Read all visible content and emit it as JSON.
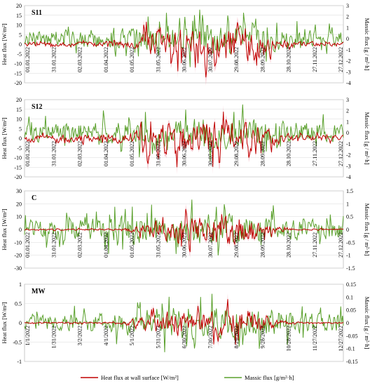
{
  "colors": {
    "heat": "#c00000",
    "massic": "#5aa02c",
    "heat_band": "#f4b6c2",
    "grid": "#d9d9d9",
    "frame": "#a6a6a6"
  },
  "chart_data": [
    {
      "type": "line",
      "title": "S11",
      "ylabel_left": "Heat flux [W/m²]",
      "ylabel_right": "Massic flux [g / m²·h]",
      "ylim_left": [
        -20,
        20
      ],
      "yticks_left": [
        "20",
        "15",
        "10",
        "5",
        "0",
        "-5",
        "-10",
        "-15",
        "-20"
      ],
      "ylim_right": [
        -4,
        3
      ],
      "yticks_right": [
        "3",
        "2",
        "1",
        "0",
        "-1",
        "-2",
        "-3",
        "-4"
      ],
      "x_tick_labels": [
        "01.01.2022",
        "31.01.2022",
        "02.03.2022",
        "01.04.2022",
        "01.05.2022",
        "31.05.2022",
        "30.06.2022",
        "30.07.2022",
        "29.08.2022",
        "28.09.2022",
        "28.10.2022",
        "27.11.2022",
        "27.12.2022"
      ],
      "series": [
        {
          "name": "Heat flux at wall surface [W/m²]",
          "axis": "left",
          "envelope": [
            [
              0,
              1.5
            ],
            [
              0.2,
              1.5
            ],
            [
              0.33,
              2
            ],
            [
              0.38,
              9
            ],
            [
              0.45,
              11
            ],
            [
              0.55,
              11
            ],
            [
              0.66,
              12
            ],
            [
              0.72,
              10
            ],
            [
              0.78,
              4
            ],
            [
              0.85,
              1.5
            ],
            [
              1,
              1.5
            ]
          ]
        },
        {
          "name": "Massic flux [g/m²·h]",
          "axis": "right",
          "envelope": [
            [
              0,
              0.9
            ],
            [
              0.15,
              0.9
            ],
            [
              0.3,
              1.2
            ],
            [
              0.45,
              1.4
            ],
            [
              0.6,
              1.5
            ],
            [
              0.75,
              1.4
            ],
            [
              0.9,
              0.9
            ],
            [
              1,
              0.8
            ]
          ]
        }
      ]
    },
    {
      "type": "line",
      "title": "S12",
      "ylabel_left": "Heat flux [W/m²]",
      "ylabel_right": "Massic flux [g / m²·h]",
      "ylim_left": [
        -20,
        20
      ],
      "yticks_left": [
        "20",
        "15",
        "10",
        "5",
        "0",
        "-5",
        "-10",
        "-15",
        "-20"
      ],
      "ylim_right": [
        -4,
        3
      ],
      "yticks_right": [
        "3",
        "2",
        "1",
        "0",
        "-1",
        "-2",
        "-3",
        "-4"
      ],
      "x_tick_labels": [
        "01.01.2022",
        "31.01.2022",
        "02.03.2022",
        "01.04.2022",
        "01.05.2022",
        "31.05.2022",
        "30.06.2022",
        "30.07.2022",
        "29.08.2022",
        "28.09.2022",
        "28.10.2022",
        "27.11.2022",
        "27.12.2022"
      ],
      "series": [
        {
          "name": "Heat flux at wall surface [W/m²]",
          "axis": "left",
          "envelope": [
            [
              0,
              2
            ],
            [
              0.2,
              2.5
            ],
            [
              0.33,
              3
            ],
            [
              0.38,
              9
            ],
            [
              0.45,
              11
            ],
            [
              0.55,
              12
            ],
            [
              0.66,
              13
            ],
            [
              0.72,
              10
            ],
            [
              0.78,
              5
            ],
            [
              0.85,
              2
            ],
            [
              1,
              2
            ]
          ]
        },
        {
          "name": "Massic flux [g/m²·h]",
          "axis": "right",
          "envelope": [
            [
              0,
              1
            ],
            [
              0.15,
              1
            ],
            [
              0.3,
              1.3
            ],
            [
              0.45,
              1.5
            ],
            [
              0.6,
              1.6
            ],
            [
              0.75,
              1.5
            ],
            [
              0.9,
              1
            ],
            [
              1,
              0.9
            ]
          ]
        }
      ]
    },
    {
      "type": "line",
      "title": "C",
      "ylabel_left": "Heat flux [W/m²]",
      "ylabel_right": "Massic flux [g / m²·h]",
      "ylim_left": [
        -30,
        30
      ],
      "yticks_left": [
        "30",
        "20",
        "10",
        "0",
        "-10",
        "-20",
        "-30"
      ],
      "ylim_right": [
        -1.5,
        1.5
      ],
      "yticks_right": [
        "1.5",
        "1",
        "0.5",
        "0",
        "-0.5",
        "-1",
        "-1.5"
      ],
      "x_tick_labels": [
        "01.01.2022",
        "31.01.2022",
        "02.03.2022",
        "01.04.2022",
        "01.05.2022",
        "31.05.2022",
        "30.06.2022",
        "30.07.2022",
        "29.08.2022",
        "28.09.2022",
        "28.10.2022",
        "27.11.2022",
        "27.12.2022"
      ],
      "series": [
        {
          "name": "Heat flux at wall surface [W/m²]",
          "axis": "left",
          "envelope": [
            [
              0,
              0.6
            ],
            [
              0.3,
              0.8
            ],
            [
              0.38,
              6
            ],
            [
              0.45,
              12
            ],
            [
              0.55,
              13
            ],
            [
              0.66,
              15
            ],
            [
              0.72,
              11
            ],
            [
              0.78,
              4
            ],
            [
              0.85,
              0.8
            ],
            [
              1,
              0.6
            ]
          ]
        },
        {
          "name": "Massic flux [g/m²·h]",
          "axis": "right",
          "envelope": [
            [
              0,
              0.45
            ],
            [
              0.15,
              0.45
            ],
            [
              0.3,
              0.6
            ],
            [
              0.45,
              0.65
            ],
            [
              0.6,
              0.7
            ],
            [
              0.75,
              0.6
            ],
            [
              0.9,
              0.45
            ],
            [
              1,
              0.4
            ]
          ]
        }
      ]
    },
    {
      "type": "line",
      "title": "MW",
      "ylabel_left": "Heat flux [W/m²]",
      "ylabel_right": "Massic flux [g / m²·h]",
      "ylim_left": [
        -1,
        1
      ],
      "yticks_left": [
        "1",
        "0.5",
        "0",
        "-0.5",
        "-1"
      ],
      "ylim_right": [
        -0.15,
        0.15
      ],
      "yticks_right": [
        "0.15",
        "0.1",
        "0.05",
        "0",
        "-0.05",
        "-0.1",
        "-0.15"
      ],
      "x_tick_labels": [
        "1/1/2022",
        "1/31/2022",
        "3/2/2022",
        "4/1/2022",
        "5/1/2022",
        "5/31/2022",
        "6/30/2022",
        "7/30/2022",
        "8/29/2022",
        "9/28/2022",
        "10/28/2022",
        "11/27/2022",
        "12/27/2022"
      ],
      "series": [
        {
          "name": "Heat flux at wall surface [W/m²]",
          "axis": "left",
          "envelope": [
            [
              0,
              0.02
            ],
            [
              0.3,
              0.03
            ],
            [
              0.38,
              0.2
            ],
            [
              0.45,
              0.4
            ],
            [
              0.55,
              0.45
            ],
            [
              0.66,
              0.5
            ],
            [
              0.72,
              0.35
            ],
            [
              0.78,
              0.12
            ],
            [
              0.85,
              0.03
            ],
            [
              1,
              0.02
            ]
          ]
        },
        {
          "name": "Massic flux [g/m²·h]",
          "axis": "right",
          "envelope": [
            [
              0,
              0.03
            ],
            [
              0.15,
              0.04
            ],
            [
              0.3,
              0.05
            ],
            [
              0.45,
              0.07
            ],
            [
              0.6,
              0.075
            ],
            [
              0.75,
              0.065
            ],
            [
              0.9,
              0.045
            ],
            [
              1,
              0.04
            ]
          ]
        }
      ]
    }
  ],
  "legend": {
    "heat_label": "Heat flux at wall surface [W/m²]",
    "massic_label": "Massic flux [g/m²·h]"
  }
}
